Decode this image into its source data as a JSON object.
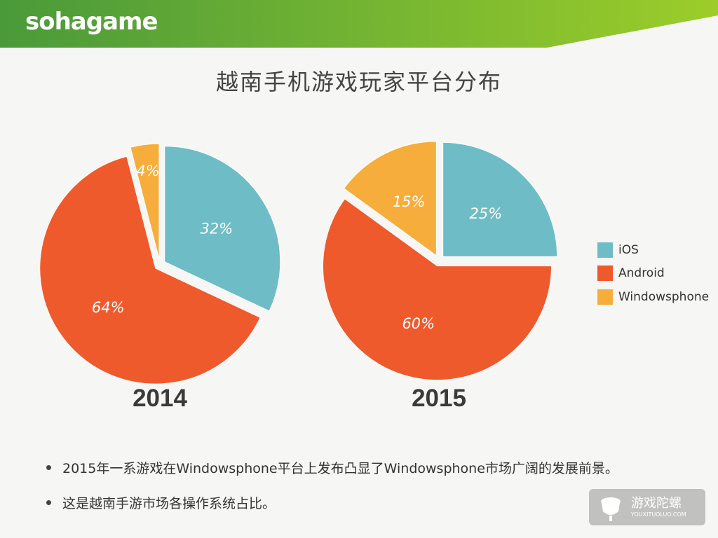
{
  "brand": {
    "logo_text": "sohagame",
    "header_dark": "#4a9a3a",
    "header_light": "#9ccd2a"
  },
  "title": "越南手机游戏玩家平台分布",
  "colors": {
    "ios": "#6ebdc6",
    "android": "#ef5a2d",
    "windowsphone": "#f7ad3c"
  },
  "legend": [
    {
      "label": "iOS",
      "color": "#6ebdc6"
    },
    {
      "label": "Android",
      "color": "#ef5a2d"
    },
    {
      "label": "Windowsphone",
      "color": "#f7ad3c"
    }
  ],
  "chart_data": [
    {
      "type": "pie",
      "title": "2014",
      "categories": [
        "iOS",
        "Android",
        "Windowsphone"
      ],
      "values": [
        32,
        64,
        4
      ],
      "labels": [
        "32%",
        "64%",
        "4%"
      ],
      "exploded": "all slices"
    },
    {
      "type": "pie",
      "title": "2015",
      "categories": [
        "iOS",
        "Android",
        "Windowsphone"
      ],
      "values": [
        25,
        60,
        15
      ],
      "labels": [
        "25%",
        "60%",
        "15%"
      ],
      "exploded": "all slices"
    }
  ],
  "notes": [
    "2015年一系游戏在Windowsphone平台上发布凸显了Windowsphone市场广阔的发展前景。",
    "这是越南手游市场各操作系统占比。"
  ],
  "watermark": {
    "name": "游戏陀螺",
    "url": "YOUXITUOLUO.COM"
  }
}
